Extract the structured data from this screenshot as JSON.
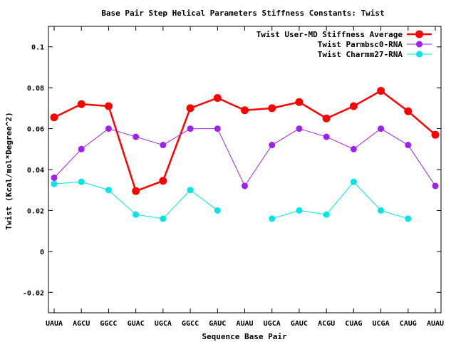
{
  "chart_data": {
    "type": "line",
    "title": "Base Pair Step Helical Parameters Stiffness Constants: Twist",
    "xlabel": "Sequence Base Pair",
    "ylabel": "Twist (Kcal/mol*Degree^2)",
    "categories": [
      "UAUA",
      "AGCU",
      "GGCC",
      "GUAC",
      "UGCA",
      "GGCC",
      "GAUC",
      "AUAU",
      "UGCA",
      "GAUC",
      "ACGU",
      "CUAG",
      "UCGA",
      "CAUG",
      "AUAU"
    ],
    "ylim": [
      -0.03,
      0.11
    ],
    "yticks": [
      -0.02,
      0,
      0.02,
      0.04,
      0.06,
      0.08,
      0.1
    ],
    "ytick_labels": [
      "-0.02",
      "0",
      "0.02",
      "0.04",
      "0.06",
      "0.08",
      "0.1"
    ],
    "grid": false,
    "legend_position": "top-right",
    "series": [
      {
        "name": "Twist User-MD Stiffness Average",
        "color": "#ff0000",
        "style": "thick",
        "values": [
          0.0655,
          0.072,
          0.071,
          0.0295,
          0.0345,
          0.07,
          0.075,
          0.069,
          0.07,
          0.073,
          0.065,
          0.071,
          0.0785,
          0.0685,
          0.057
        ]
      },
      {
        "name": "Twist Parmbsc0-RNA",
        "color": "#a020f0",
        "style": "thin",
        "values": [
          0.036,
          0.05,
          0.06,
          0.056,
          0.052,
          0.06,
          0.06,
          0.032,
          0.052,
          0.06,
          0.056,
          0.05,
          0.06,
          0.052,
          0.032
        ]
      },
      {
        "name": "Twist Charmm27-RNA",
        "color": "#00e5e5",
        "style": "thin",
        "values": [
          0.033,
          0.034,
          0.03,
          0.018,
          0.016,
          0.03,
          0.02,
          null,
          0.016,
          0.02,
          0.018,
          0.034,
          0.02,
          0.016,
          null
        ]
      }
    ]
  }
}
